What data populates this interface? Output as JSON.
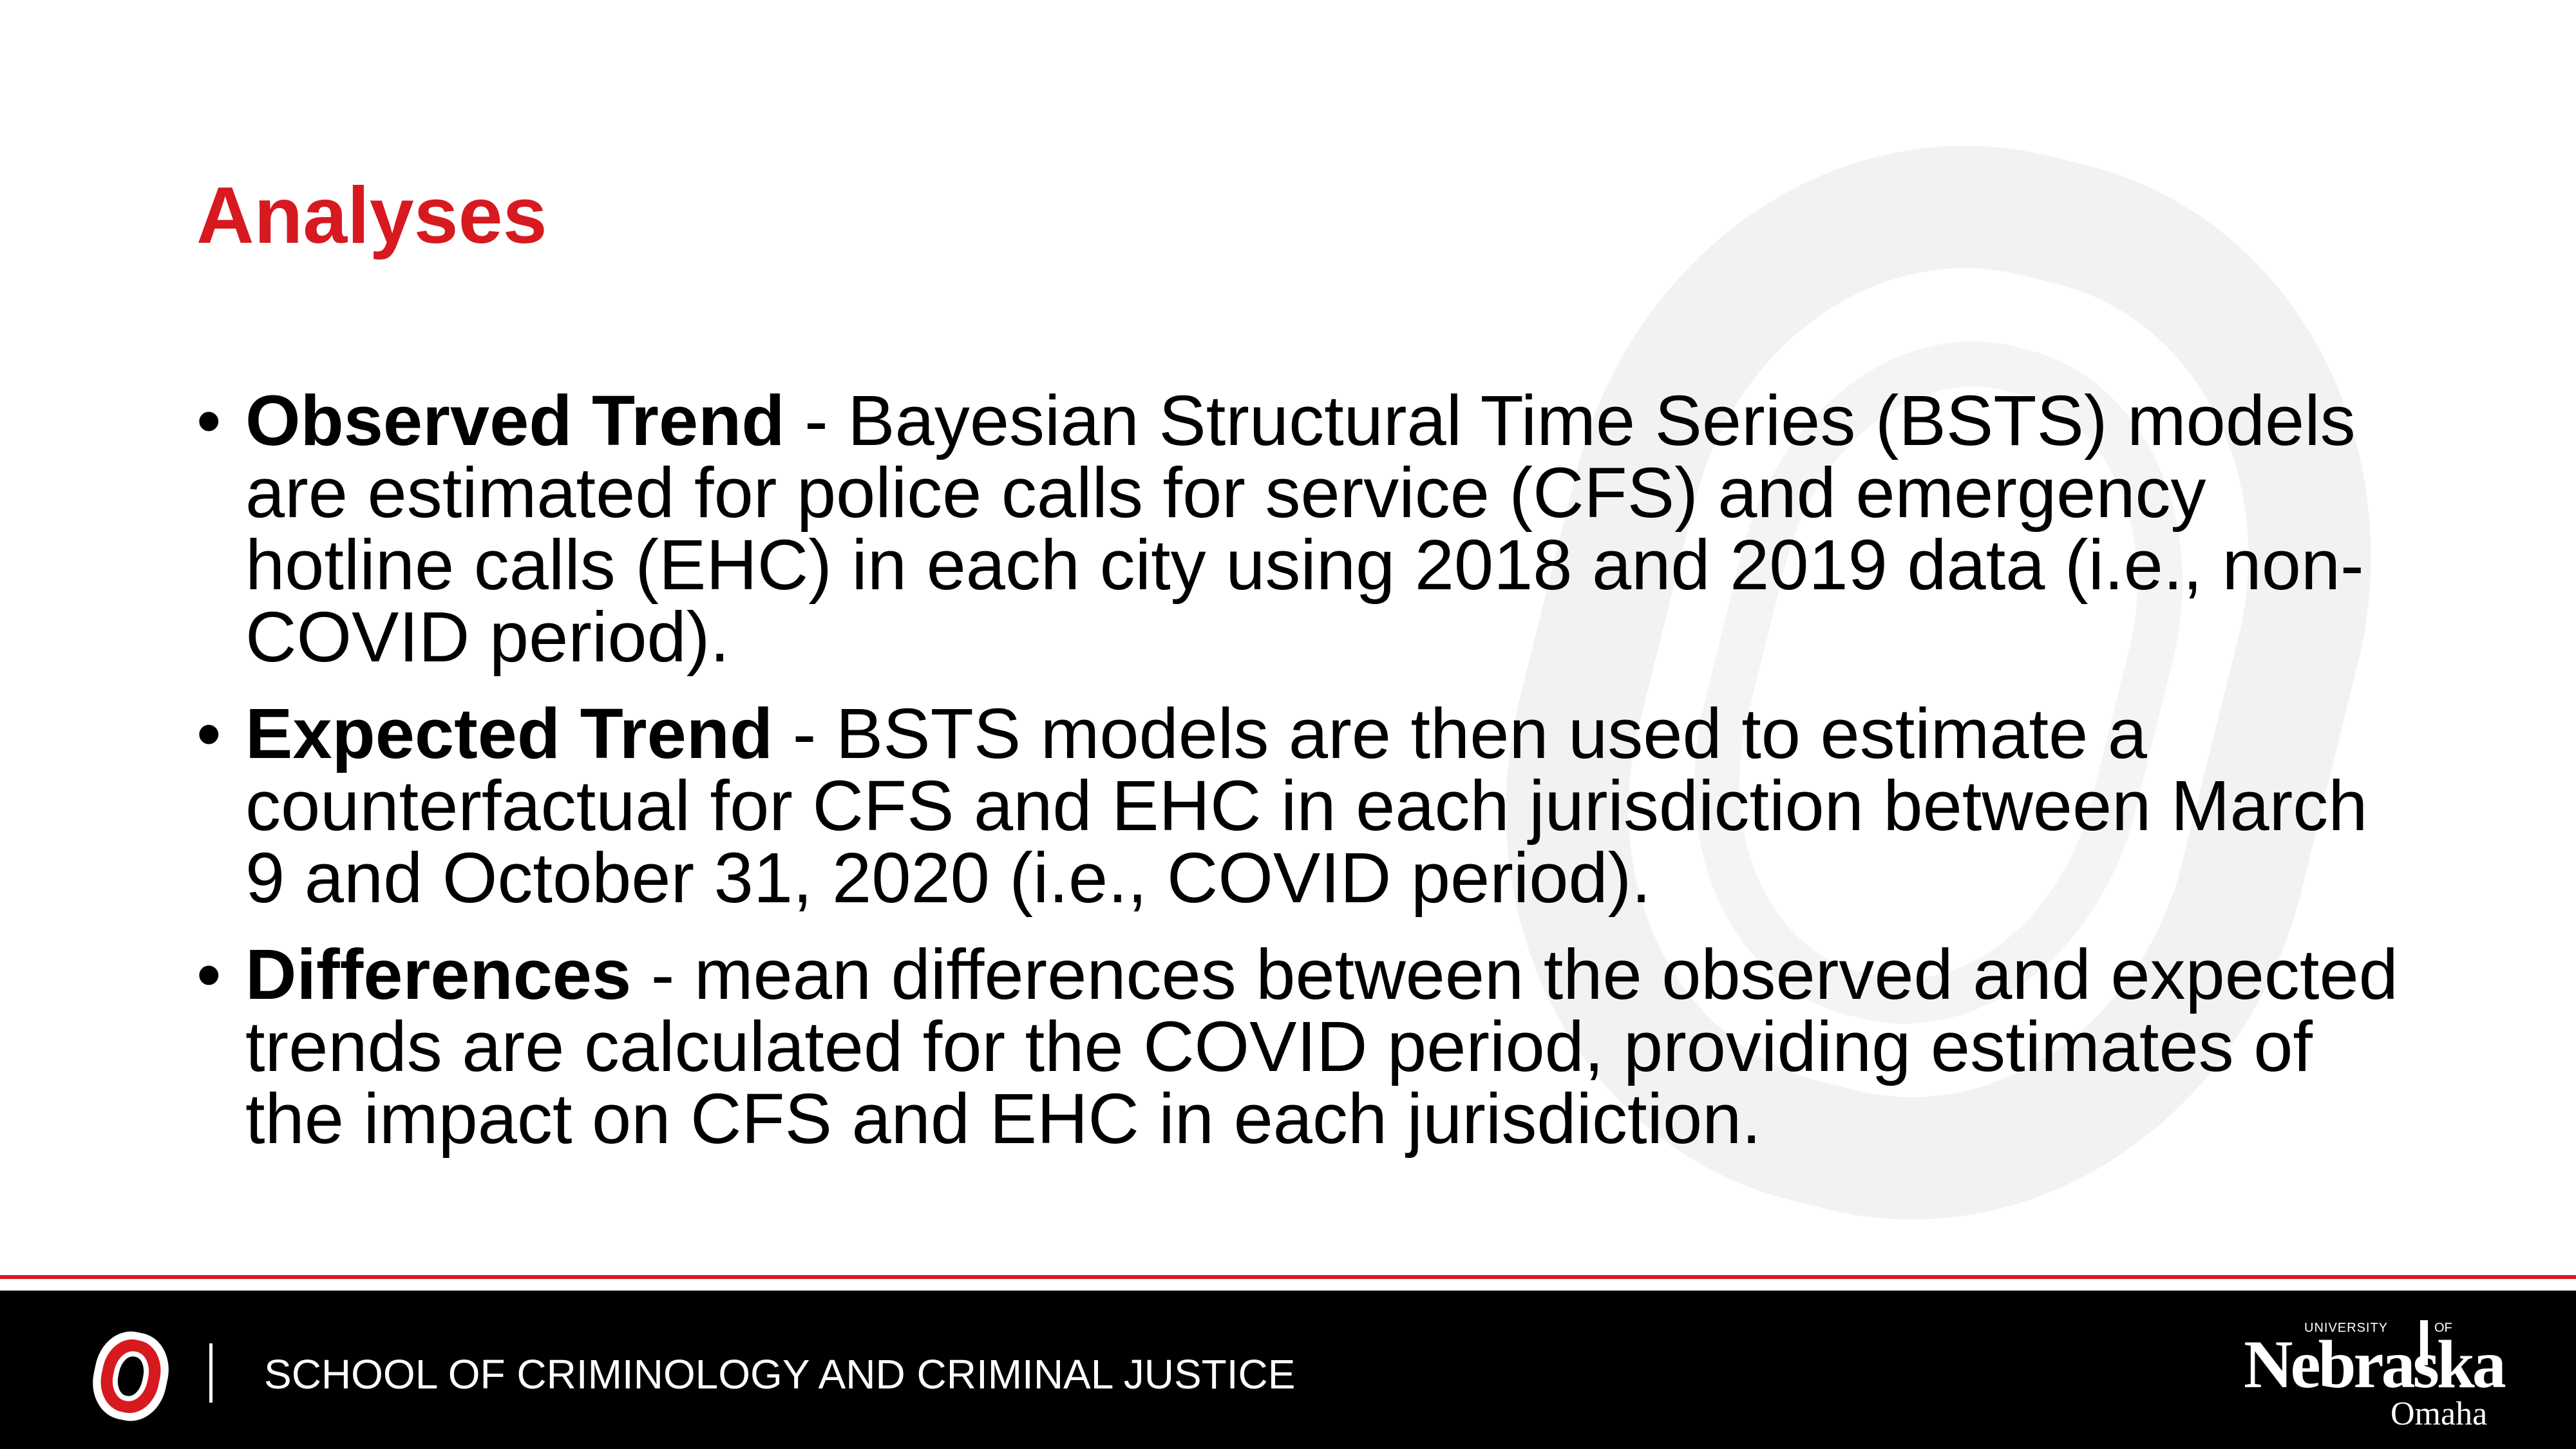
{
  "slide": {
    "title": "Analyses",
    "accent_color": "#d71920",
    "bullet_marker": "•",
    "bullets": [
      {
        "term": "Observed Trend",
        "text": " - Bayesian Structural Time Series (BSTS) models are estimated for police calls for service (CFS) and emergency hotline calls (EHC) in each city using 2018 and 2019 data (i.e., non-COVID period)."
      },
      {
        "term": "Expected Trend",
        "text": " - BSTS models are then used to estimate a counterfactual for CFS and EHC in each jurisdiction between March 9 and October 31, 2020 (i.e., COVID period)."
      },
      {
        "term": "Differences",
        "text": " - mean differences between the observed and expected trends are calculated for the COVID period, providing estimates of the impact on CFS and EHC in each jurisdiction."
      }
    ]
  },
  "footer": {
    "background_color": "#000000",
    "school_name": "SCHOOL OF CRIMINOLOGY AND CRIMINAL JUSTICE",
    "divider": "|",
    "left_logo_icon": "uno-o-logo-icon",
    "university_logo": {
      "university": "UNIVERSITY",
      "of": "OF",
      "name": "Nebraska",
      "campus": "Omaha"
    }
  },
  "watermark_icon": "uno-o-watermark-icon"
}
